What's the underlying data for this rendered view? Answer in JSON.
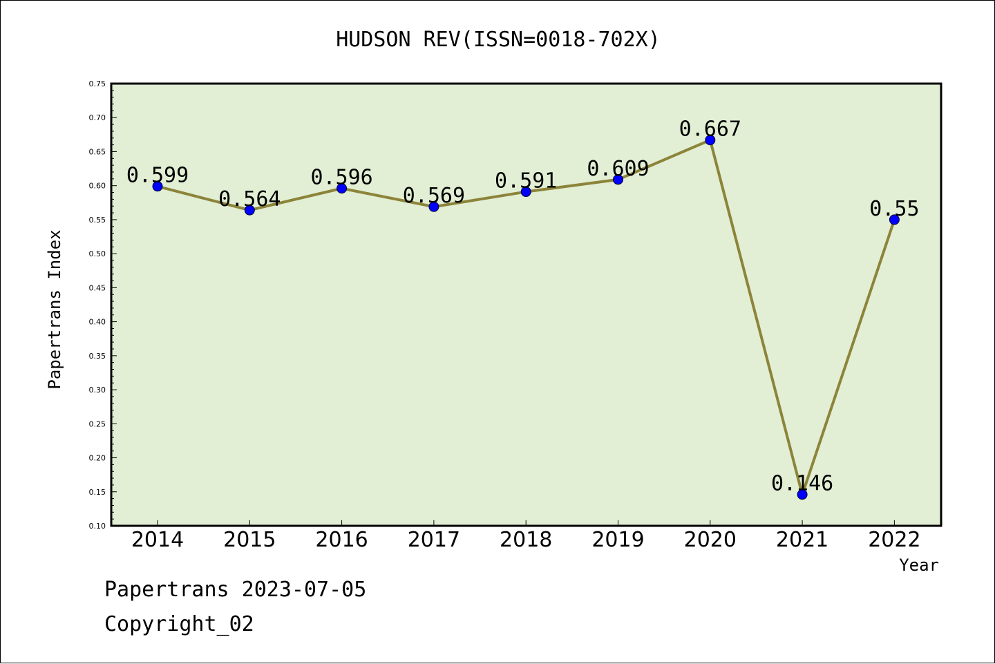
{
  "footer": {
    "line1": "Papertrans 2023-07-05",
    "line2": "Copyright_02"
  },
  "colors": {
    "plot_background": "#e2efd5",
    "line": "#8c8439",
    "marker": "#0000ff",
    "axis": "#000000"
  },
  "chart_data": {
    "type": "line",
    "title": "HUDSON REV(ISSN=0018-702X)",
    "xlabel": "Year",
    "ylabel": "Papertrans Index",
    "categories": [
      "2014",
      "2015",
      "2016",
      "2017",
      "2018",
      "2019",
      "2020",
      "2021",
      "2022"
    ],
    "series": [
      {
        "values": [
          0.599,
          0.564,
          0.596,
          0.569,
          0.591,
          0.609,
          0.667,
          0.146,
          0.55
        ],
        "labels": [
          "0.599",
          "0.564",
          "0.596",
          "0.569",
          "0.591",
          "0.609",
          "0.667",
          "0.146",
          "0.55"
        ]
      }
    ],
    "ylim": [
      0.1,
      0.75
    ],
    "yticks": [
      "0.10",
      "0.15",
      "0.20",
      "0.25",
      "0.30",
      "0.35",
      "0.40",
      "0.45",
      "0.50",
      "0.55",
      "0.60",
      "0.65",
      "0.70",
      "0.75"
    ],
    "grid": false,
    "legend": "none"
  }
}
